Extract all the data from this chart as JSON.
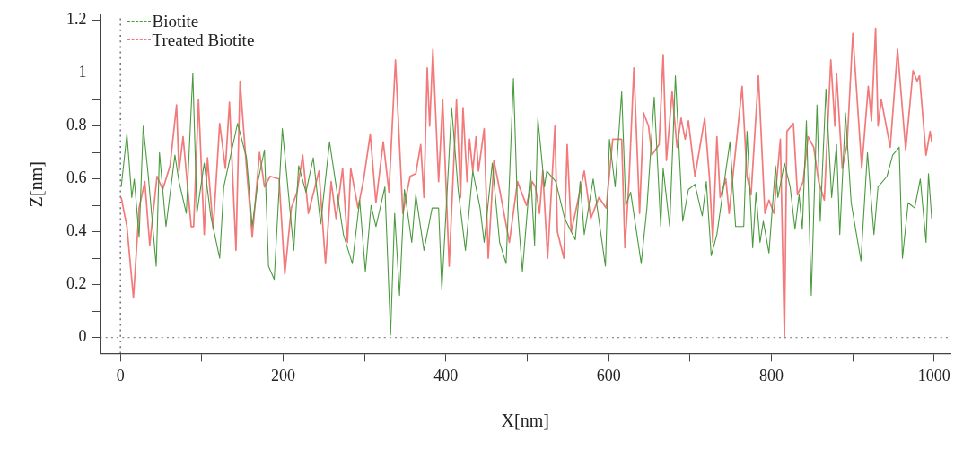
{
  "chart_data": {
    "type": "line",
    "xlabel": "X[nm]",
    "ylabel": "Z[nm]",
    "xlim": [
      -25,
      1020
    ],
    "ylim": [
      -0.06,
      1.22
    ],
    "xticks": [
      0,
      {
        "value": 100,
        "label": null
      },
      200,
      {
        "value": 300,
        "label": null
      },
      400,
      {
        "value": 500,
        "label": null
      },
      600,
      {
        "value": 700,
        "label": null
      },
      800,
      {
        "value": 900,
        "label": null
      },
      1000
    ],
    "yticks": [
      0,
      {
        "value": 0.1,
        "label": null
      },
      0.2,
      {
        "value": 0.3,
        "label": null
      },
      0.4,
      {
        "value": 0.5,
        "label": null
      },
      0.6,
      {
        "value": 0.7,
        "label": null
      },
      0.8,
      {
        "value": 0.9,
        "label": null
      },
      1,
      {
        "value": 1.1,
        "label": null
      },
      1.2
    ],
    "grid": false,
    "legend": "top left",
    "marker": "none",
    "line_style": "solid",
    "ref_lines": [
      {
        "axis": "x",
        "value": 0,
        "color": "#4a4a6a",
        "line_style": "dotted"
      },
      {
        "axis": "y",
        "value": 0,
        "color": "#8a8a8a",
        "line_style": "dotted"
      }
    ],
    "series": [
      {
        "name": "Biotite",
        "color": "#4a9a3e",
        "x": [
          1,
          8,
          14,
          17,
          23,
          28,
          34,
          44,
          48,
          56,
          67,
          72,
          81,
          89,
          94,
          103,
          111,
          122,
          127,
          144,
          155,
          162,
          169,
          177,
          182,
          189,
          199,
          213,
          219,
          228,
          237,
          246,
          257,
          274,
          285,
          294,
          301,
          308,
          314,
          325,
          332,
          337,
          343,
          349,
          358,
          363,
          373,
          383,
          391,
          395,
          407,
          415,
          424,
          433,
          442,
          447,
          457,
          466,
          474,
          483,
          488,
          494,
          504,
          509,
          513,
          521,
          524,
          535,
          546,
          559,
          565,
          570,
          581,
          596,
          601,
          608,
          616,
          621,
          627,
          640,
          647,
          656,
          664,
          667,
          675,
          682,
          691,
          698,
          706,
          715,
          720,
          726,
          733,
          749,
          756,
          766,
          770,
          777,
          781,
          786,
          790,
          797,
          805,
          808,
          816,
          823,
          829,
          834,
          838,
          843,
          849,
          856,
          860,
          867,
          874,
          880,
          884,
          891,
          898,
          910,
          918,
          926,
          931,
          942,
          949,
          957,
          961,
          968,
          976,
          983,
          990,
          993,
          997
        ],
        "values": [
          0.57,
          0.77,
          0.53,
          0.6,
          0.38,
          0.8,
          0.62,
          0.27,
          0.7,
          0.42,
          0.69,
          0.59,
          0.47,
          1.0,
          0.47,
          0.66,
          0.46,
          0.3,
          0.57,
          0.81,
          0.68,
          0.42,
          0.59,
          0.71,
          0.27,
          0.22,
          0.79,
          0.33,
          0.65,
          0.55,
          0.68,
          0.43,
          0.74,
          0.39,
          0.28,
          0.52,
          0.25,
          0.5,
          0.42,
          0.57,
          0.01,
          0.47,
          0.16,
          0.56,
          0.36,
          0.54,
          0.33,
          0.49,
          0.49,
          0.18,
          0.87,
          0.56,
          0.33,
          0.63,
          0.49,
          0.36,
          0.66,
          0.36,
          0.28,
          0.98,
          0.49,
          0.25,
          0.63,
          0.35,
          0.83,
          0.57,
          0.63,
          0.59,
          0.45,
          0.37,
          0.59,
          0.39,
          0.6,
          0.27,
          0.75,
          0.57,
          0.93,
          0.5,
          0.55,
          0.28,
          0.49,
          0.91,
          0.42,
          0.64,
          0.42,
          0.99,
          0.44,
          0.56,
          0.58,
          0.46,
          0.59,
          0.31,
          0.39,
          0.74,
          0.42,
          0.42,
          0.78,
          0.34,
          0.55,
          0.36,
          0.44,
          0.32,
          0.65,
          0.53,
          0.66,
          0.57,
          0.41,
          0.54,
          0.41,
          0.82,
          0.16,
          0.88,
          0.44,
          0.94,
          0.53,
          0.73,
          0.39,
          0.85,
          0.51,
          0.29,
          0.7,
          0.39,
          0.57,
          0.61,
          0.69,
          0.72,
          0.3,
          0.51,
          0.49,
          0.6,
          0.36,
          0.62,
          0.45
        ]
      },
      {
        "name": "Treated Biotite",
        "color": "#f27a7a",
        "x": [
          1,
          8,
          16,
          23,
          30,
          36,
          45,
          52,
          61,
          69,
          72,
          77,
          87,
          90,
          96,
          103,
          107,
          114,
          122,
          129,
          134,
          142,
          147,
          155,
          162,
          171,
          177,
          184,
          195,
          202,
          210,
          217,
          224,
          231,
          244,
          252,
          259,
          265,
          273,
          279,
          283,
          292,
          299,
          307,
          314,
          323,
          330,
          338,
          347,
          356,
          363,
          369,
          373,
          377,
          380,
          384,
          391,
          396,
          404,
          413,
          418,
          421,
          426,
          429,
          433,
          437,
          440,
          447,
          452,
          459,
          466,
          478,
          488,
          499,
          506,
          510,
          515,
          519,
          525,
          534,
          537,
          545,
          549,
          554,
          570,
          578,
          588,
          597,
          605,
          616,
          620,
          625,
          631,
          638,
          643,
          649,
          653,
          662,
          667,
          671,
          678,
          684,
          689,
          694,
          698,
          706,
          711,
          718,
          724,
          728,
          733,
          737,
          744,
          748,
          755,
          764,
          770,
          775,
          784,
          792,
          797,
          803,
          811,
          816,
          819,
          827,
          832,
          839,
          845,
          852,
          858,
          865,
          873,
          878,
          880,
          887,
          893,
          900,
          911,
          919,
          923,
          928,
          931,
          935,
          946,
          955,
          965,
          974,
          979,
          982,
          990,
          995,
          997
        ],
        "values": [
          0.53,
          0.42,
          0.15,
          0.49,
          0.59,
          0.35,
          0.61,
          0.56,
          0.65,
          0.88,
          0.63,
          0.76,
          0.42,
          0.42,
          0.9,
          0.39,
          0.68,
          0.41,
          0.81,
          0.64,
          0.89,
          0.33,
          0.97,
          0.64,
          0.38,
          0.7,
          0.57,
          0.61,
          0.6,
          0.24,
          0.49,
          0.55,
          0.69,
          0.47,
          0.63,
          0.28,
          0.59,
          0.45,
          0.64,
          0.36,
          0.64,
          0.49,
          0.6,
          0.77,
          0.51,
          0.74,
          0.55,
          1.05,
          0.47,
          0.61,
          0.62,
          0.73,
          0.53,
          1.02,
          0.8,
          1.09,
          0.59,
          0.9,
          0.27,
          0.9,
          0.53,
          0.87,
          0.59,
          0.75,
          0.63,
          0.76,
          0.63,
          0.79,
          0.3,
          0.67,
          0.56,
          0.36,
          0.59,
          0.5,
          0.59,
          0.57,
          0.47,
          0.63,
          0.3,
          0.8,
          0.4,
          0.3,
          0.73,
          0.4,
          0.63,
          0.45,
          0.53,
          0.49,
          0.75,
          0.75,
          0.34,
          0.59,
          1.02,
          0.47,
          0.85,
          0.8,
          0.69,
          0.73,
          1.07,
          0.67,
          0.93,
          0.72,
          0.83,
          0.75,
          0.82,
          0.61,
          0.7,
          0.83,
          0.6,
          0.36,
          0.76,
          0.53,
          0.6,
          0.47,
          0.68,
          0.95,
          0.61,
          0.54,
          0.99,
          0.47,
          0.52,
          0.47,
          0.75,
          0.0,
          0.78,
          0.81,
          0.54,
          0.59,
          0.76,
          0.72,
          0.59,
          0.52,
          1.05,
          0.8,
          1.0,
          0.64,
          0.73,
          1.15,
          0.64,
          0.95,
          0.82,
          1.17,
          0.8,
          0.9,
          0.72,
          1.09,
          0.71,
          1.01,
          0.97,
          0.99,
          0.69,
          0.78,
          0.74
        ]
      }
    ]
  }
}
